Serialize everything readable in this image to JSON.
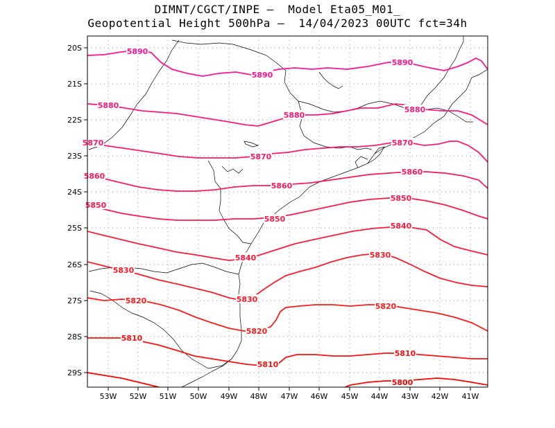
{
  "header": {
    "line1": "DIMNT/CGCT/INPE –  Model Eta05_M01_",
    "line2": "Geopotential Height 500hPa –  14/04/2023 00UTC fct=34h"
  },
  "axes": {
    "lat_labels": [
      "20S",
      "21S",
      "22S",
      "23S",
      "24S",
      "25S",
      "26S",
      "27S",
      "28S",
      "29S"
    ],
    "lon_labels": [
      "53W",
      "52W",
      "51W",
      "50W",
      "49W",
      "48W",
      "47W",
      "46W",
      "45W",
      "44W",
      "43W",
      "42W",
      "41W"
    ]
  },
  "contours": [
    {
      "value": 5890,
      "label": "5890",
      "color": "#ff1493"
    },
    {
      "value": 5880,
      "label": "5880",
      "color": "#ff1a7a"
    },
    {
      "value": 5870,
      "label": "5870",
      "color": "#ff1a6a"
    },
    {
      "value": 5860,
      "label": "5860",
      "color": "#ff1a5a"
    },
    {
      "value": 5850,
      "label": "5850",
      "color": "#ff1a4a"
    },
    {
      "value": 5840,
      "label": "5840",
      "color": "#ff1a3a"
    },
    {
      "value": 5830,
      "label": "5830",
      "color": "#ff1a2a"
    },
    {
      "value": 5820,
      "label": "5820",
      "color": "#ff1a1a"
    },
    {
      "value": 5810,
      "label": "5810",
      "color": "#ff1010"
    },
    {
      "value": 5800,
      "label": "5800",
      "color": "#ff0000"
    }
  ]
}
